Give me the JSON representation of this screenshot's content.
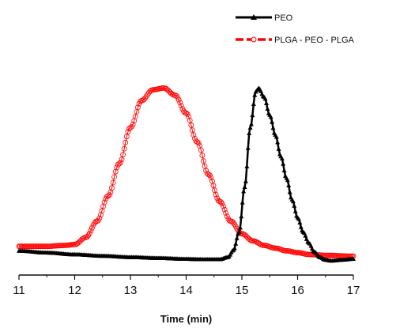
{
  "chart_data": {
    "type": "line",
    "title": "",
    "xlabel": "Time (min)",
    "ylabel": "",
    "xlim": [
      11,
      17
    ],
    "ylim": [
      0,
      1.05
    ],
    "x_ticks": [
      "11",
      "12",
      "13",
      "14",
      "15",
      "16",
      "17"
    ],
    "y_axis_shown": false,
    "grid": false,
    "legend_position": "top-right",
    "series": [
      {
        "name": "PEO",
        "color": "#000000",
        "marker": "filled-triangle",
        "x": [
          11.0,
          11.5,
          12.0,
          12.5,
          13.0,
          13.5,
          14.0,
          14.3,
          14.6,
          14.75,
          14.85,
          14.95,
          15.05,
          15.15,
          15.25,
          15.3,
          15.4,
          15.5,
          15.6,
          15.7,
          15.8,
          15.9,
          16.0,
          16.1,
          16.2,
          16.3,
          16.4,
          16.5,
          16.6,
          16.8,
          17.0
        ],
        "y": [
          0.095,
          0.085,
          0.075,
          0.067,
          0.06,
          0.055,
          0.05,
          0.048,
          0.048,
          0.06,
          0.1,
          0.2,
          0.45,
          0.78,
          0.98,
          1.0,
          0.95,
          0.85,
          0.74,
          0.62,
          0.5,
          0.38,
          0.28,
          0.2,
          0.14,
          0.09,
          0.06,
          0.045,
          0.04,
          0.045,
          0.05
        ]
      },
      {
        "name": "PLGA - PEO - PLGA",
        "color": "#ff0000",
        "marker": "open-circle",
        "x": [
          11.0,
          11.5,
          11.8,
          12.0,
          12.2,
          12.4,
          12.6,
          12.8,
          13.0,
          13.2,
          13.4,
          13.6,
          13.8,
          14.0,
          14.2,
          14.4,
          14.6,
          14.8,
          15.0,
          15.2,
          15.4,
          15.6,
          15.8,
          16.0,
          16.2,
          16.5,
          17.0
        ],
        "y": [
          0.12,
          0.12,
          0.125,
          0.13,
          0.17,
          0.26,
          0.4,
          0.58,
          0.78,
          0.93,
          0.99,
          1.0,
          0.96,
          0.86,
          0.7,
          0.52,
          0.37,
          0.26,
          0.19,
          0.15,
          0.125,
          0.11,
          0.095,
          0.085,
          0.075,
          0.07,
          0.065
        ]
      }
    ]
  }
}
